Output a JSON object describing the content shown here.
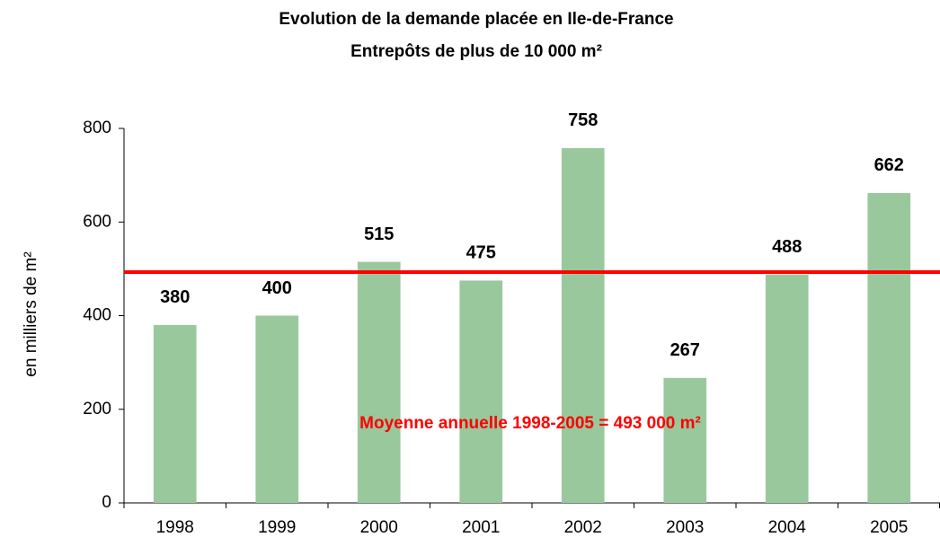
{
  "chart_data": {
    "type": "bar",
    "title": [
      "Evolution de la demande placée en Ile-de-France",
      "Entrepôts de plus de 10 000 m²"
    ],
    "y_label": "en milliers de m²",
    "categories": [
      "1998",
      "1999",
      "2000",
      "2001",
      "2002",
      "2003",
      "2004",
      "2005"
    ],
    "values": [
      380,
      400,
      515,
      475,
      758,
      267,
      488,
      662
    ],
    "color": "#99c89d",
    "ylim": [
      0,
      800
    ],
    "yticks": [
      0,
      200,
      400,
      600,
      800
    ],
    "grid": false,
    "reference_line": {
      "value": 493,
      "color": "#ff0000",
      "label": "Moyenne annuelle 1998-2005 = 493 000 m²"
    }
  }
}
